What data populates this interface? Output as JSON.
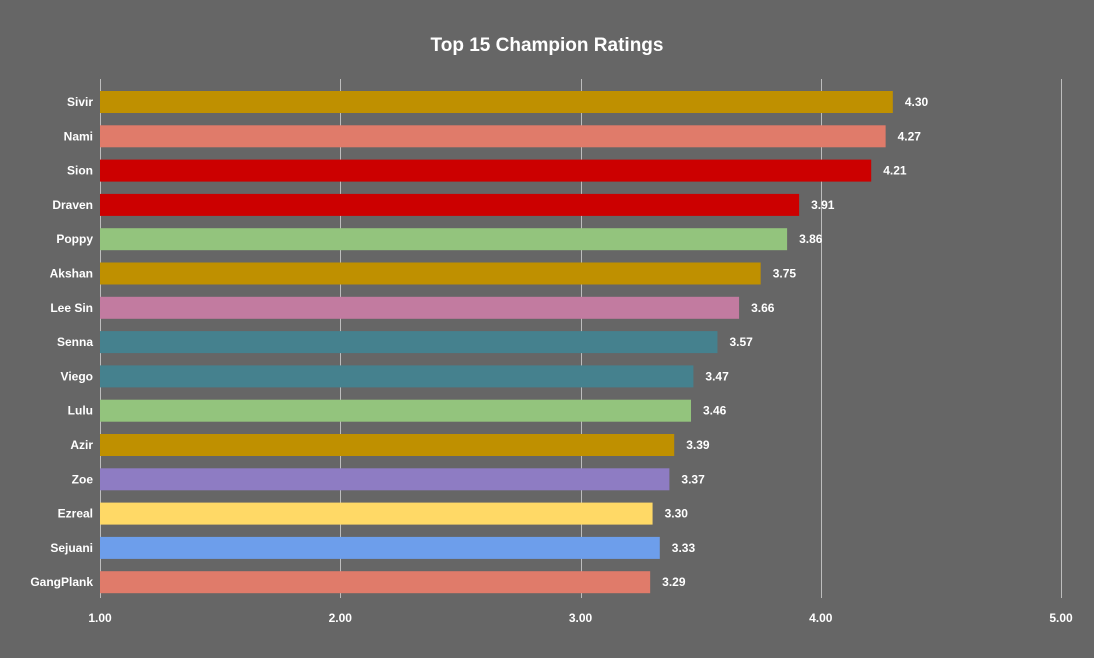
{
  "chart_data": {
    "type": "bar",
    "orientation": "horizontal",
    "title": "Top 15 Champion Ratings",
    "xlabel": "",
    "ylabel": "",
    "xlim": [
      1.0,
      5.0
    ],
    "grid": true,
    "legend": "none",
    "ticks": [
      "1.00",
      "2.00",
      "3.00",
      "4.00",
      "5.00"
    ],
    "tick_values": [
      1,
      2,
      3,
      4,
      5
    ],
    "categories": [
      "Sivir",
      "Nami",
      "Sion",
      "Draven",
      "Poppy",
      "Akshan",
      "Lee Sin",
      "Senna",
      "Viego",
      "Lulu",
      "Azir",
      "Zoe",
      "Ezreal",
      "Sejuani",
      "GangPlank"
    ],
    "values": [
      4.3,
      4.27,
      4.21,
      3.91,
      3.86,
      3.75,
      3.66,
      3.57,
      3.47,
      3.46,
      3.39,
      3.37,
      3.3,
      3.33,
      3.29
    ],
    "value_labels": [
      "4.30",
      "4.27",
      "4.21",
      "3.91",
      "3.86",
      "3.75",
      "3.66",
      "3.57",
      "3.47",
      "3.46",
      "3.39",
      "3.37",
      "3.30",
      "3.33",
      "3.29"
    ],
    "colors": [
      "#bf9000",
      "#e07b6a",
      "#cc0000",
      "#cc0000",
      "#93c47d",
      "#bf9000",
      "#c27ba0",
      "#45818e",
      "#45818e",
      "#93c47d",
      "#bf9000",
      "#8e7cc3",
      "#ffd966",
      "#6d9eeb",
      "#e07b6a"
    ]
  }
}
